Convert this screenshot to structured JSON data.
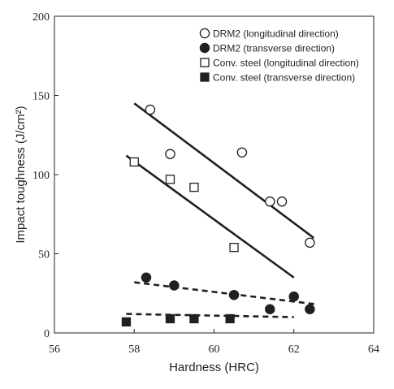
{
  "chart_data": {
    "type": "scatter",
    "title": "",
    "xlabel": "Hardness (HRC)",
    "ylabel": "Impact toughness (J/cm²)",
    "xlim": [
      56,
      64
    ],
    "ylim": [
      0,
      200
    ],
    "xticks": [
      56,
      58,
      60,
      62,
      64
    ],
    "yticks": [
      0,
      50,
      100,
      150,
      200
    ],
    "grid": false,
    "legend_position": "top-right",
    "series": [
      {
        "name": "DRM2 (longitudinal direction)",
        "marker": "open-circle",
        "color": "#231f20",
        "points": [
          {
            "x": 58.4,
            "y": 141
          },
          {
            "x": 58.9,
            "y": 113
          },
          {
            "x": 60.7,
            "y": 114
          },
          {
            "x": 61.4,
            "y": 83
          },
          {
            "x": 61.7,
            "y": 83
          },
          {
            "x": 62.4,
            "y": 57
          }
        ],
        "trend": {
          "style": "solid",
          "x": [
            58.0,
            62.5
          ],
          "y": [
            145,
            60
          ]
        }
      },
      {
        "name": "DRM2 (transverse direction)",
        "marker": "filled-circle",
        "color": "#231f20",
        "points": [
          {
            "x": 58.3,
            "y": 35
          },
          {
            "x": 59.0,
            "y": 30
          },
          {
            "x": 60.5,
            "y": 24
          },
          {
            "x": 61.4,
            "y": 15
          },
          {
            "x": 62.0,
            "y": 23
          },
          {
            "x": 62.4,
            "y": 15
          }
        ],
        "trend": {
          "style": "dashed",
          "x": [
            58.0,
            62.6
          ],
          "y": [
            32,
            18
          ]
        }
      },
      {
        "name": "Conv. steel (longitudinal direction)",
        "marker": "open-square",
        "color": "#231f20",
        "points": [
          {
            "x": 58.0,
            "y": 108
          },
          {
            "x": 58.9,
            "y": 97
          },
          {
            "x": 59.5,
            "y": 92
          },
          {
            "x": 60.5,
            "y": 54
          }
        ],
        "trend": {
          "style": "solid",
          "x": [
            57.8,
            62.0
          ],
          "y": [
            112,
            35
          ]
        }
      },
      {
        "name": "Conv. steel (transverse direction)",
        "marker": "filled-square",
        "color": "#231f20",
        "points": [
          {
            "x": 57.8,
            "y": 7
          },
          {
            "x": 58.9,
            "y": 9
          },
          {
            "x": 59.5,
            "y": 9
          },
          {
            "x": 60.4,
            "y": 9
          }
        ],
        "trend": {
          "style": "dashed",
          "x": [
            57.8,
            62.0
          ],
          "y": [
            12,
            10
          ]
        }
      }
    ]
  }
}
